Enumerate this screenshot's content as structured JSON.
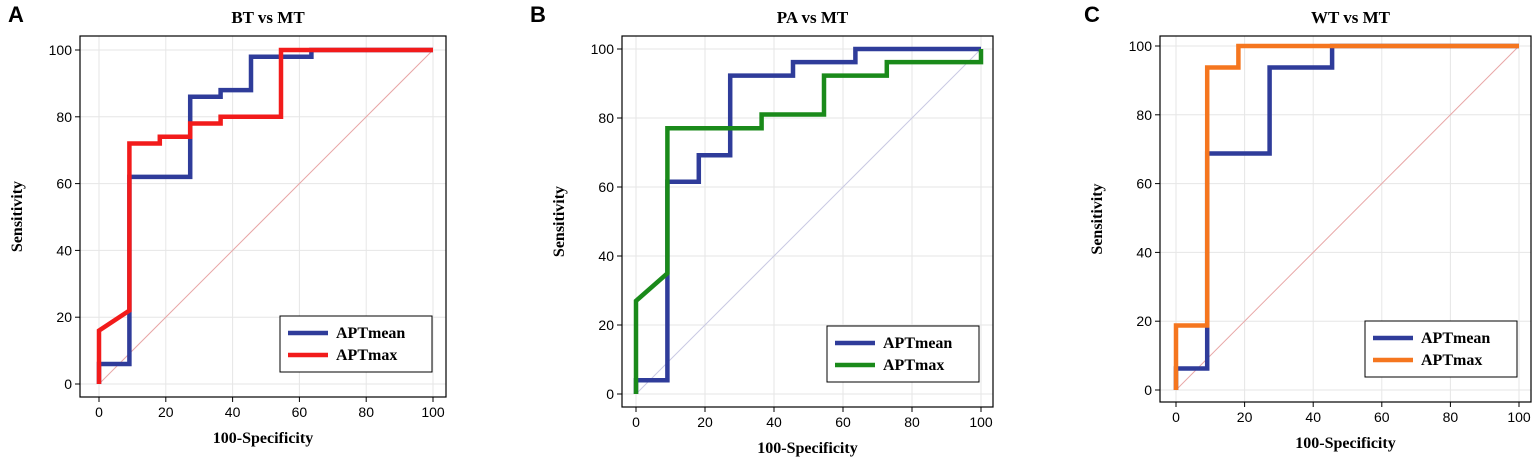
{
  "chart_data": [
    {
      "type": "line",
      "panel": "A",
      "title": "BT vs MT",
      "xlabel": "100-Specificity",
      "ylabel": "Sensitivity",
      "xlim": [
        0,
        100
      ],
      "ylim": [
        0,
        100
      ],
      "xticks": [
        "0",
        "20",
        "40",
        "60",
        "80",
        "100"
      ],
      "yticks": [
        "0",
        "20",
        "40",
        "60",
        "80",
        "100"
      ],
      "grid": true,
      "legend_position": "bottom-right",
      "reference_line": {
        "from": [
          0,
          0
        ],
        "to": [
          100,
          100
        ],
        "color": "#e8a6a6"
      },
      "series": [
        {
          "name": "APTmean",
          "color": "#2f3c9a",
          "x": [
            0,
            0,
            9.1,
            9.1,
            27.3,
            27.3,
            36.4,
            36.4,
            45.5,
            45.5,
            54.5,
            54.5,
            63.6,
            63.6,
            100
          ],
          "y": [
            0,
            6,
            6,
            62,
            62,
            86,
            86,
            88,
            88,
            98,
            98,
            98,
            98,
            100,
            100
          ]
        },
        {
          "name": "APTmax",
          "color": "#f21b1b",
          "x": [
            0,
            0,
            9.1,
            9.1,
            18.2,
            18.2,
            27.3,
            27.3,
            36.4,
            36.4,
            54.5,
            54.5,
            100
          ],
          "y": [
            0,
            16,
            22,
            72,
            72,
            74,
            74,
            78,
            78,
            80,
            80,
            100,
            100
          ]
        }
      ]
    },
    {
      "type": "line",
      "panel": "B",
      "title": "PA vs MT",
      "xlabel": "100-Specificity",
      "ylabel": "Sensitivity",
      "xlim": [
        0,
        100
      ],
      "ylim": [
        0,
        100
      ],
      "xticks": [
        "0",
        "20",
        "40",
        "60",
        "80",
        "100"
      ],
      "yticks": [
        "0",
        "20",
        "40",
        "60",
        "80",
        "100"
      ],
      "grid": true,
      "legend_position": "bottom-right",
      "reference_line": {
        "from": [
          0,
          0
        ],
        "to": [
          100,
          100
        ],
        "color": "#c9c9e3"
      },
      "series": [
        {
          "name": "APTmean",
          "color": "#2f3c9a",
          "x": [
            0,
            0,
            9.1,
            9.1,
            18.2,
            18.2,
            27.3,
            27.3,
            45.5,
            45.5,
            54.5,
            54.5,
            63.6,
            63.6,
            100,
            100
          ],
          "y": [
            0,
            4,
            4,
            61.5,
            61.5,
            69.2,
            69.2,
            92.3,
            92.3,
            96.2,
            96.2,
            96.2,
            96.2,
            100,
            100,
            100
          ]
        },
        {
          "name": "APTmax",
          "color": "#1a8a1a",
          "x": [
            0,
            0,
            9.1,
            9.1,
            36.4,
            36.4,
            54.5,
            54.5,
            72.7,
            72.7,
            100,
            100
          ],
          "y": [
            0,
            27,
            35,
            77,
            77,
            81,
            81,
            92.3,
            92.3,
            96.2,
            96.2,
            100
          ]
        }
      ]
    },
    {
      "type": "line",
      "panel": "C",
      "title": "WT vs MT",
      "xlabel": "100-Specificity",
      "ylabel": "Sensitivity",
      "xlim": [
        0,
        100
      ],
      "ylim": [
        0,
        100
      ],
      "xticks": [
        "0",
        "20",
        "40",
        "60",
        "80",
        "100"
      ],
      "yticks": [
        "0",
        "20",
        "40",
        "60",
        "80",
        "100"
      ],
      "grid": true,
      "legend_position": "bottom-right",
      "reference_line": {
        "from": [
          0,
          0
        ],
        "to": [
          100,
          100
        ],
        "color": "#e8a6a6"
      },
      "series": [
        {
          "name": "APTmean",
          "color": "#2f3c9a",
          "x": [
            0,
            0,
            9.1,
            9.1,
            27.3,
            27.3,
            45.5,
            45.5,
            100
          ],
          "y": [
            0,
            6.25,
            6.25,
            68.75,
            68.75,
            93.75,
            93.75,
            100,
            100
          ]
        },
        {
          "name": "APTmax",
          "color": "#f5761f",
          "x": [
            0,
            0,
            9.1,
            9.1,
            18.2,
            18.2,
            100
          ],
          "y": [
            0,
            18.75,
            18.75,
            93.75,
            93.75,
            100,
            100
          ]
        }
      ]
    }
  ]
}
